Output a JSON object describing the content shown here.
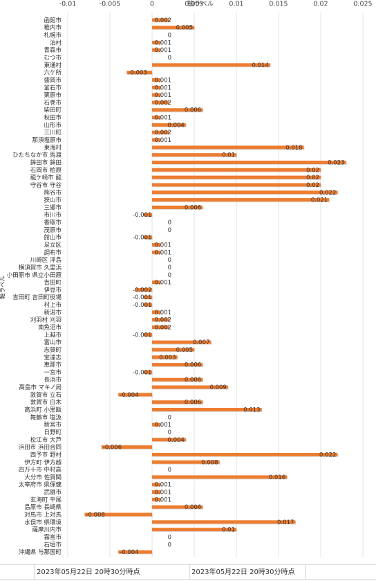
{
  "chart_data": {
    "type": "bar",
    "orientation": "horizontal",
    "x_label": "軸ラベル",
    "y_label": "軸ラベル",
    "categories": [
      "函館市",
      "稚内市",
      "札幌市",
      "泊村",
      "青森市",
      "むつ市",
      "東通村",
      "六ケ所",
      "盛岡市",
      "釜石市",
      "栗原市",
      "石巻市",
      "柴田町",
      "秋田市",
      "山形市",
      "三川町",
      "那須塩原市",
      "東海村",
      "ひたちなか市 馬渡",
      "鉾田市 鉾田",
      "石岡市 柏原",
      "龍ケ崎市 龍",
      "守谷市 守谷",
      "熊谷市",
      "狭山市",
      "三郷市",
      "市川市",
      "香取市",
      "茂原市",
      "館山市",
      "足立区",
      "調布市",
      "川崎区 浮島",
      "横須賀市 久里浜",
      "小田原市 県立小田原",
      "吉田町",
      "伊豆市",
      "吉田町 吉田町役場",
      "村上市",
      "新潟市",
      "刈羽村 刈羽",
      "南魚沼市",
      "上越市",
      "富山市",
      "志賀町",
      "宝達志",
      "恵那市",
      "一宮市",
      "長浜市",
      "高島市 マキノ局",
      "敦賀市 立石",
      "敦賀市 白木",
      "高浜町 小黒飯",
      "舞鶴市 塩汲",
      "新宮市",
      "日野町",
      "松江市 大芦",
      "浜田市 浜田合同",
      "西予市 野村",
      "伊方町 伊方越",
      "四万十市 中村高",
      "大分市 佐賀関",
      "太宰府市 県保健",
      "武雄市",
      "玄海町 平尾",
      "島原市 長崎県",
      "対馬市 上対馬",
      "水俣市 県環境",
      "薩摩川内市",
      "霧島市",
      "石垣市",
      "沖縄県 与那国町"
    ],
    "values": [
      0.002,
      0.005,
      0,
      0.001,
      0.001,
      0,
      0.014,
      -0.003,
      0.001,
      0.001,
      0.001,
      0.002,
      0.006,
      0.001,
      0.004,
      0.002,
      0.001,
      0.018,
      0.01,
      0.023,
      0.02,
      0.02,
      0.02,
      0.022,
      0.021,
      0.006,
      -0.001,
      0,
      0,
      -0.001,
      0.001,
      0.001,
      0,
      0,
      0,
      0.001,
      -0.002,
      -0.001,
      -0.001,
      0.001,
      0.002,
      0.002,
      -0.001,
      0.007,
      0.005,
      0.003,
      0.006,
      -0.001,
      0.006,
      0.009,
      -0.004,
      0.006,
      0.013,
      0,
      0.001,
      0,
      0.004,
      -0.006,
      0.022,
      0.008,
      0,
      0.016,
      0.001,
      0.001,
      0.001,
      0.006,
      -0.008,
      0.017,
      0.01,
      0,
      0,
      -0.004
    ],
    "color": "#ed7d31",
    "xlim": [
      -0.01,
      0.025
    ],
    "xticks": [
      -0.01,
      -0.005,
      0,
      0.005,
      0.01,
      0.015,
      0.02,
      0.025
    ],
    "grid": true
  },
  "footer": [
    "2023年05月22日 20時30分時点",
    "2023年05月22日 20時30分時点"
  ]
}
